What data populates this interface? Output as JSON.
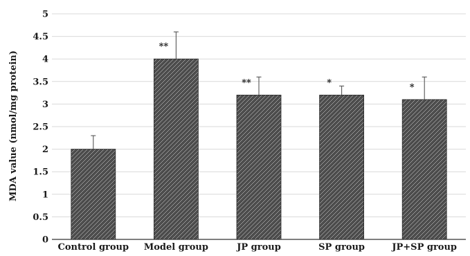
{
  "chart_data": {
    "type": "bar",
    "title": "",
    "xlabel": "",
    "ylabel": "MDA value (nmol/mg protein)",
    "ylim": [
      0,
      5
    ],
    "yticks": [
      "0",
      "0.5",
      "1",
      "1.5",
      "2",
      "2.5",
      "3",
      "3.5",
      "4",
      "4.5",
      "5"
    ],
    "grid": true,
    "categories": [
      "Control group",
      "Model group",
      "JP group",
      "SP group",
      "JP+SP group"
    ],
    "values": [
      2.0,
      4.0,
      3.2,
      3.2,
      3.1
    ],
    "error_upper": [
      2.3,
      4.6,
      3.6,
      3.4,
      3.6
    ],
    "significance": [
      "",
      "**",
      "**",
      "*",
      "*"
    ],
    "colors": {
      "bar_fill": "#3a3a3a",
      "bar_pattern": "#9a9a9a",
      "grid": "#d9d9d9",
      "axis": "#333333",
      "error_bar": "#555555"
    }
  }
}
